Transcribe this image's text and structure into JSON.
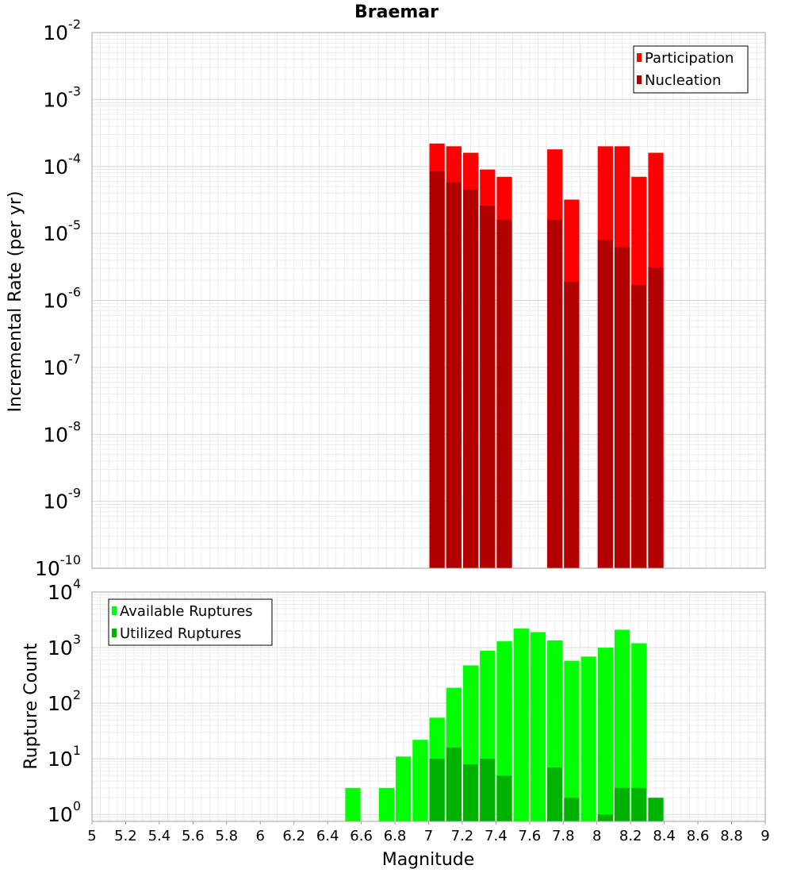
{
  "chart_data": [
    {
      "type": "bar",
      "title": "Braemar",
      "xlabel": "",
      "ylabel": "Incremental Rate (per yr)",
      "yscale": "log",
      "xlim": [
        5,
        9
      ],
      "ylim": [
        1e-10,
        0.01
      ],
      "ytick_exponents": [
        "-2",
        "-3",
        "-4",
        "-5",
        "-6",
        "-7",
        "-8",
        "-9",
        "-10"
      ],
      "ytick_base": "10",
      "grid": true,
      "legend_position": "top-right",
      "bar_width": 0.1,
      "series": [
        {
          "name": "Participation",
          "color": "#ff0000",
          "x": [
            7.05,
            7.15,
            7.25,
            7.35,
            7.45,
            7.75,
            7.85,
            8.05,
            8.15,
            8.25,
            8.35
          ],
          "values": [
            0.00022,
            0.0002,
            0.00016,
            9e-05,
            7e-05,
            0.00018,
            3.2e-05,
            0.0002,
            0.0002,
            7e-05,
            0.00016
          ]
        },
        {
          "name": "Nucleation",
          "color": "#b20000",
          "x": [
            7.05,
            7.15,
            7.25,
            7.35,
            7.45,
            7.75,
            7.85,
            8.05,
            8.15,
            8.25,
            8.35
          ],
          "values": [
            8.5e-05,
            5.8e-05,
            4.5e-05,
            2.6e-05,
            1.6e-05,
            1.6e-05,
            1.9e-06,
            8e-06,
            6.2e-06,
            1.7e-06,
            3.1e-06
          ]
        }
      ]
    },
    {
      "type": "bar",
      "title": "",
      "xlabel": "Magnitude",
      "ylabel": "Rupture Count",
      "yscale": "log",
      "xlim": [
        5,
        9
      ],
      "ylim": [
        0.75,
        10000
      ],
      "ytick_exponents": [
        "4",
        "3",
        "2",
        "1",
        "0"
      ],
      "ytick_base": "10",
      "xticks": [
        "5",
        "5.2",
        "5.4",
        "5.6",
        "5.8",
        "6",
        "6.2",
        "6.4",
        "6.6",
        "6.8",
        "7",
        "7.2",
        "7.4",
        "7.6",
        "7.8",
        "8",
        "8.2",
        "8.4",
        "8.6",
        "8.8",
        "9"
      ],
      "grid": true,
      "legend_position": "top-left",
      "bar_width": 0.1,
      "series": [
        {
          "name": "Available Ruptures",
          "color": "#00ff00",
          "x": [
            6.55,
            6.75,
            6.85,
            6.95,
            7.05,
            7.15,
            7.25,
            7.35,
            7.45,
            7.55,
            7.65,
            7.75,
            7.85,
            7.95,
            8.05,
            8.15,
            8.25
          ],
          "values": [
            3,
            3,
            11,
            22,
            55,
            190,
            480,
            880,
            1300,
            2200,
            1900,
            1350,
            580,
            690,
            1000,
            2100,
            1200
          ]
        },
        {
          "name": "Utilized Ruptures",
          "color": "#00b200",
          "x": [
            7.05,
            7.15,
            7.25,
            7.35,
            7.45,
            7.75,
            7.85,
            8.05,
            8.15,
            8.25,
            8.35
          ],
          "values": [
            10,
            16,
            8,
            10,
            5,
            7,
            2,
            1,
            3,
            3,
            2
          ]
        }
      ]
    }
  ]
}
